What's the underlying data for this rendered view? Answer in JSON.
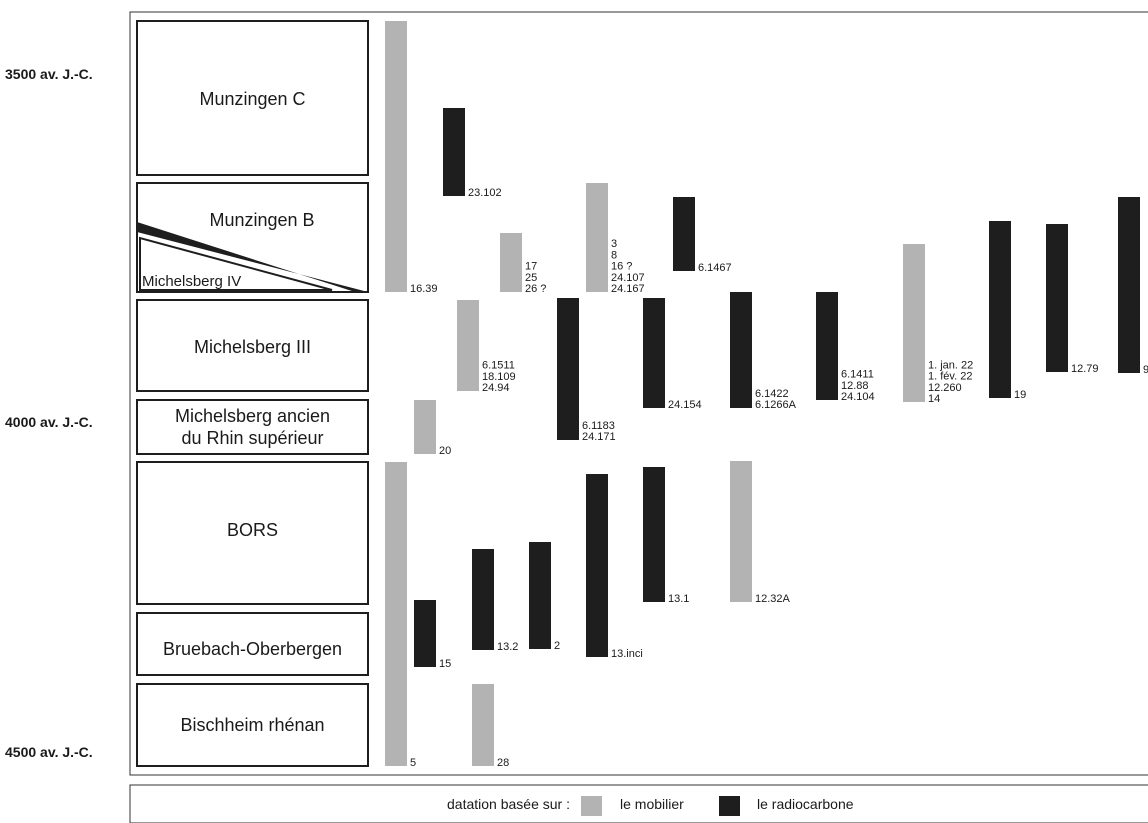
{
  "colors": {
    "mobilier": "#b3b3b3",
    "radiocarbone": "#1e1e1e",
    "frame": "#333333"
  },
  "ages": [
    "3500 av. J.-C.",
    "4000 av. J.-C.",
    "4500 av. J.-C."
  ],
  "periods": [
    {
      "id": "munzingen-c",
      "lines": [
        "Munzingen C"
      ]
    },
    {
      "id": "munzingen-b",
      "lines": [
        "Munzingen B"
      ]
    },
    {
      "id": "michelsberg-iv",
      "lines": [
        "Michelsberg IV"
      ]
    },
    {
      "id": "michelsberg-iii",
      "lines": [
        "Michelsberg III"
      ]
    },
    {
      "id": "michelsberg-ancien",
      "lines": [
        "Michelsberg ancien",
        "du Rhin supérieur"
      ]
    },
    {
      "id": "bors",
      "lines": [
        "BORS"
      ]
    },
    {
      "id": "bruebach-oberbergen",
      "lines": [
        "Bruebach-Oberbergen"
      ]
    },
    {
      "id": "bischheim-rhenan",
      "lines": [
        "Bischheim rhénan"
      ]
    }
  ],
  "bars": [
    {
      "kind": "mobilier",
      "labels": [
        "16.39"
      ]
    },
    {
      "kind": "radiocarbone",
      "labels": [
        "23.102"
      ]
    },
    {
      "kind": "mobilier",
      "labels": [
        "17",
        "25",
        "26 ?"
      ]
    },
    {
      "kind": "mobilier",
      "labels": [
        "3",
        "8",
        "16 ?",
        "24.107",
        "24.167"
      ]
    },
    {
      "kind": "radiocarbone",
      "labels": [
        "6.1467"
      ]
    },
    {
      "kind": "mobilier",
      "labels": [
        "6.1511",
        "18.109",
        "24.94"
      ]
    },
    {
      "kind": "radiocarbone",
      "labels": [
        "6.1183",
        "24.171"
      ]
    },
    {
      "kind": "radiocarbone",
      "labels": [
        "24.154"
      ]
    },
    {
      "kind": "radiocarbone",
      "labels": [
        "6.1422",
        "6.1266A"
      ]
    },
    {
      "kind": "radiocarbone",
      "labels": [
        "6.1411",
        "12.88",
        "24.104"
      ]
    },
    {
      "kind": "mobilier",
      "labels": [
        "1. jan. 22",
        "1. fév. 22",
        "12.260",
        "14"
      ]
    },
    {
      "kind": "radiocarbone",
      "labels": [
        "19"
      ]
    },
    {
      "kind": "radiocarbone",
      "labels": [
        "12.79"
      ]
    },
    {
      "kind": "radiocarbone",
      "labels": [
        "9"
      ]
    },
    {
      "kind": "mobilier",
      "labels": [
        "20"
      ]
    },
    {
      "kind": "mobilier",
      "labels": [
        "5"
      ]
    },
    {
      "kind": "radiocarbone",
      "labels": [
        "15"
      ]
    },
    {
      "kind": "radiocarbone",
      "labels": [
        "13.2"
      ]
    },
    {
      "kind": "radiocarbone",
      "labels": [
        "2"
      ]
    },
    {
      "kind": "radiocarbone",
      "labels": [
        "13.inci"
      ]
    },
    {
      "kind": "radiocarbone",
      "labels": [
        "13.1"
      ]
    },
    {
      "kind": "mobilier",
      "labels": [
        "12.32A"
      ]
    },
    {
      "kind": "mobilier",
      "labels": [
        "28"
      ]
    }
  ],
  "legend": {
    "prefix": "datation basée sur :",
    "mobilier": "le mobilier",
    "radiocarbone": "le radiocarbone"
  }
}
